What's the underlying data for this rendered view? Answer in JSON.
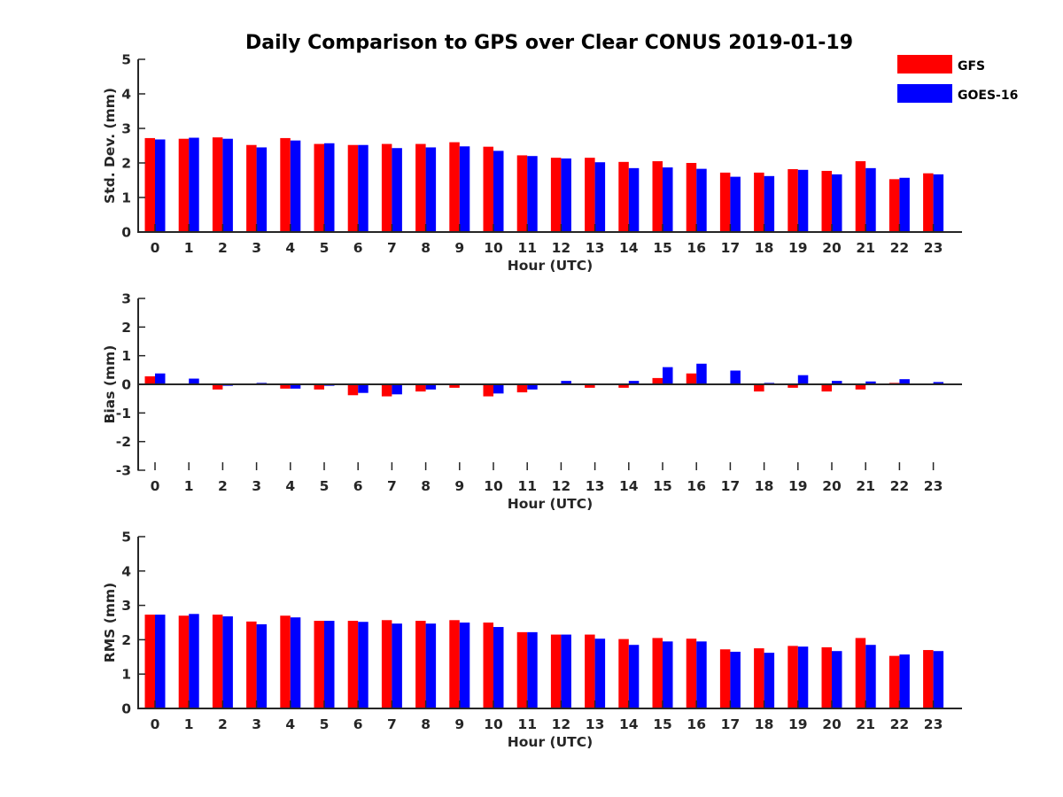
{
  "chart_data": {
    "type": "bar",
    "title": "Daily Comparison to GPS over Clear CONUS 2019-01-19",
    "legend": {
      "placement": "top-right",
      "entries": [
        {
          "name": "GFS",
          "color": "#ff0000"
        },
        {
          "name": "GOES-16",
          "color": "#0000ff"
        }
      ]
    },
    "categories": [
      "0",
      "1",
      "2",
      "3",
      "4",
      "5",
      "6",
      "7",
      "8",
      "9",
      "10",
      "11",
      "12",
      "13",
      "14",
      "15",
      "16",
      "17",
      "18",
      "19",
      "20",
      "21",
      "22",
      "23"
    ],
    "panels": [
      {
        "id": "stddev",
        "ylabel": "Std. Dev. (mm)",
        "xlabel": "Hour (UTC)",
        "ylim": [
          0,
          5
        ],
        "yticks": [
          "0",
          "1",
          "2",
          "3",
          "4",
          "5"
        ],
        "series": [
          {
            "name": "GFS",
            "values": [
              2.72,
              2.7,
              2.74,
              2.52,
              2.72,
              2.55,
              2.52,
              2.55,
              2.55,
              2.6,
              2.47,
              2.22,
              2.15,
              2.15,
              2.03,
              2.05,
              2.0,
              1.72,
              1.72,
              1.82,
              1.77,
              2.05,
              1.53,
              1.7
            ]
          },
          {
            "name": "GOES-16",
            "values": [
              2.68,
              2.73,
              2.7,
              2.45,
              2.65,
              2.57,
              2.52,
              2.43,
              2.45,
              2.48,
              2.35,
              2.2,
              2.13,
              2.02,
              1.85,
              1.87,
              1.83,
              1.6,
              1.62,
              1.8,
              1.67,
              1.85,
              1.57,
              1.67
            ]
          }
        ]
      },
      {
        "id": "bias",
        "ylabel": "Bias (mm)",
        "xlabel": "Hour (UTC)",
        "ylim": [
          -3,
          3
        ],
        "yticks": [
          "-3",
          "-2",
          "-1",
          "0",
          "1",
          "2",
          "3"
        ],
        "series": [
          {
            "name": "GFS",
            "values": [
              0.28,
              0.02,
              -0.18,
              0.02,
              -0.15,
              -0.18,
              -0.38,
              -0.42,
              -0.25,
              -0.12,
              -0.42,
              -0.28,
              0.0,
              -0.12,
              -0.12,
              0.22,
              0.38,
              0.02,
              -0.25,
              -0.12,
              -0.25,
              -0.18,
              0.05,
              0.02
            ]
          },
          {
            "name": "GOES-16",
            "values": [
              0.38,
              0.2,
              -0.05,
              0.05,
              -0.15,
              -0.05,
              -0.3,
              -0.35,
              -0.18,
              -0.02,
              -0.32,
              -0.18,
              0.12,
              0.02,
              0.12,
              0.6,
              0.72,
              0.48,
              0.05,
              0.32,
              0.12,
              0.1,
              0.18,
              0.08
            ]
          }
        ]
      },
      {
        "id": "rms",
        "ylabel": "RMS (mm)",
        "xlabel": "Hour (UTC)",
        "ylim": [
          0,
          5
        ],
        "yticks": [
          "0",
          "1",
          "2",
          "3",
          "4",
          "5"
        ],
        "series": [
          {
            "name": "GFS",
            "values": [
              2.73,
              2.7,
              2.73,
              2.53,
              2.7,
              2.55,
              2.55,
              2.57,
              2.55,
              2.57,
              2.5,
              2.22,
              2.15,
              2.15,
              2.02,
              2.05,
              2.03,
              1.72,
              1.75,
              1.82,
              1.78,
              2.05,
              1.53,
              1.7
            ]
          },
          {
            "name": "GOES-16",
            "values": [
              2.73,
              2.75,
              2.68,
              2.45,
              2.65,
              2.55,
              2.52,
              2.47,
              2.47,
              2.5,
              2.37,
              2.22,
              2.15,
              2.03,
              1.85,
              1.95,
              1.95,
              1.65,
              1.62,
              1.8,
              1.67,
              1.85,
              1.57,
              1.67
            ]
          }
        ]
      }
    ]
  }
}
